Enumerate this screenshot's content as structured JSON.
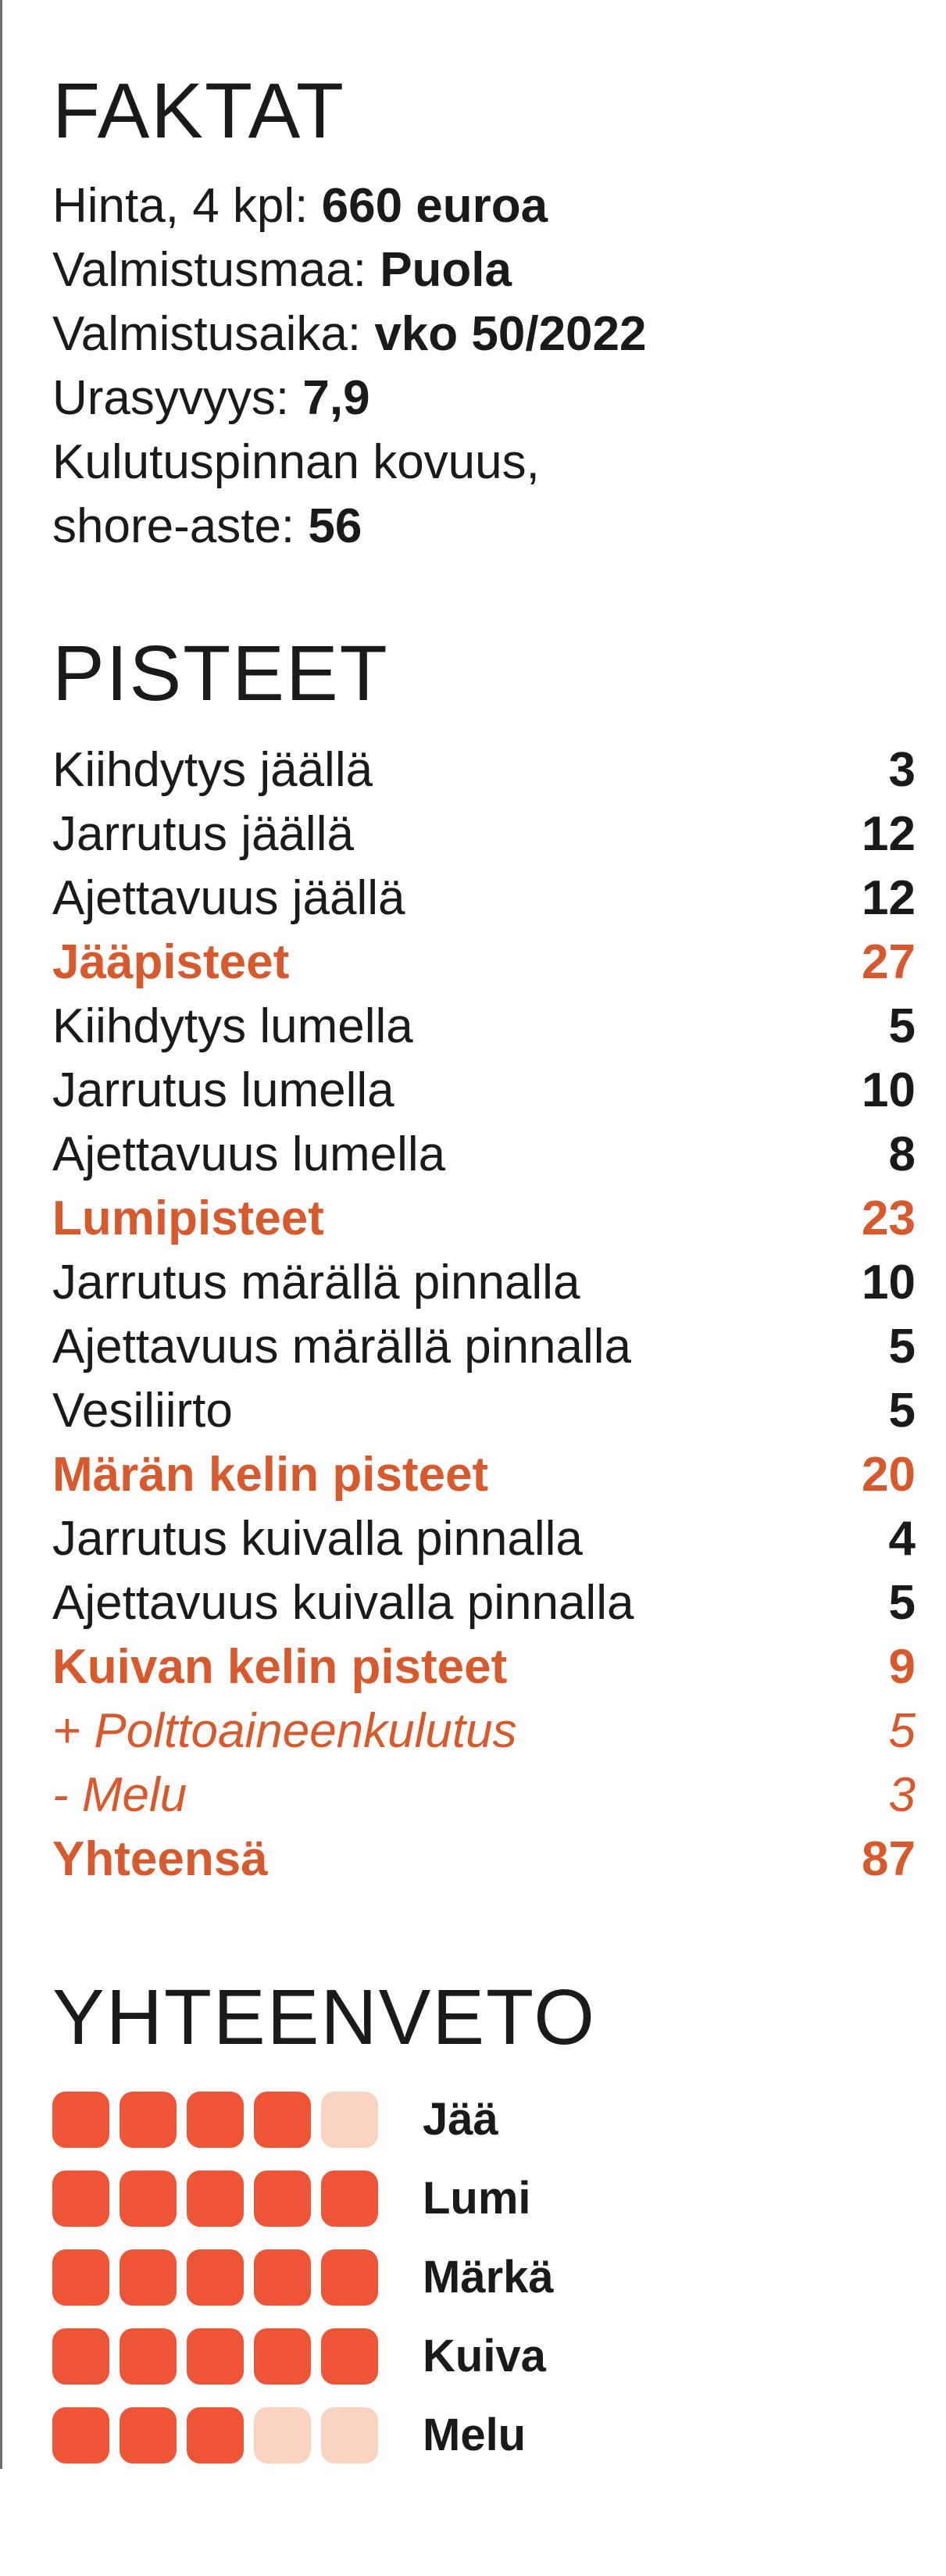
{
  "faktat": {
    "title": "FAKTAT",
    "lines": [
      {
        "label": "Hinta, 4 kpl: ",
        "value": "660 euroa"
      },
      {
        "label": "Valmistusmaa: ",
        "value": "Puola"
      },
      {
        "label": "Valmistusaika: ",
        "value": "vko 50/2022"
      },
      {
        "label": "Urasyvyys: ",
        "value": "7,9"
      },
      {
        "label": "Kulutuspinnan kovuus,",
        "value": ""
      },
      {
        "label": "shore-aste: ",
        "value": "56"
      }
    ]
  },
  "pisteet": {
    "title": "PISTEET",
    "rows": [
      {
        "label": "Kiihdytys jäällä",
        "value": "3",
        "kind": "item"
      },
      {
        "label": "Jarrutus jäällä",
        "value": "12",
        "kind": "item"
      },
      {
        "label": "Ajettavuus jäällä",
        "value": "12",
        "kind": "item"
      },
      {
        "label": "Jääpisteet",
        "value": "27",
        "kind": "sum"
      },
      {
        "label": "Kiihdytys lumella",
        "value": "5",
        "kind": "item"
      },
      {
        "label": "Jarrutus lumella",
        "value": "10",
        "kind": "item"
      },
      {
        "label": "Ajettavuus lumella",
        "value": "8",
        "kind": "item"
      },
      {
        "label": "Lumipisteet",
        "value": "23",
        "kind": "sum"
      },
      {
        "label": "Jarrutus märällä pinnalla",
        "value": "10",
        "kind": "item"
      },
      {
        "label": "Ajettavuus märällä pinnalla",
        "value": "5",
        "kind": "item"
      },
      {
        "label": "Vesiliirto",
        "value": "5",
        "kind": "item"
      },
      {
        "label": "Märän kelin pisteet",
        "value": "20",
        "kind": "sum"
      },
      {
        "label": "Jarrutus kuivalla pinnalla",
        "value": "4",
        "kind": "item"
      },
      {
        "label": "Ajettavuus kuivalla pinnalla",
        "value": "5",
        "kind": "item"
      },
      {
        "label": "Kuivan kelin pisteet",
        "value": "9",
        "kind": "sum"
      },
      {
        "label": "+ Polttoaineenkulutus",
        "value": "5",
        "kind": "mod"
      },
      {
        "label": "- Melu",
        "value": "3",
        "kind": "mod"
      },
      {
        "label": "Yhteensä",
        "value": "87",
        "kind": "sum"
      }
    ]
  },
  "yhteenveto": {
    "title": "YHTEENVETO",
    "max_rating": 5,
    "items": [
      {
        "label": "Jää",
        "rating": 4
      },
      {
        "label": "Lumi",
        "rating": 5
      },
      {
        "label": "Märkä",
        "rating": 5
      },
      {
        "label": "Kuiva",
        "rating": 5
      },
      {
        "label": "Melu",
        "rating": 3
      }
    ]
  },
  "colors": {
    "accent": "#d65a2e",
    "box_filled": "#ee5536",
    "box_empty": "#f9d3c2",
    "text": "#1a1a1a"
  }
}
